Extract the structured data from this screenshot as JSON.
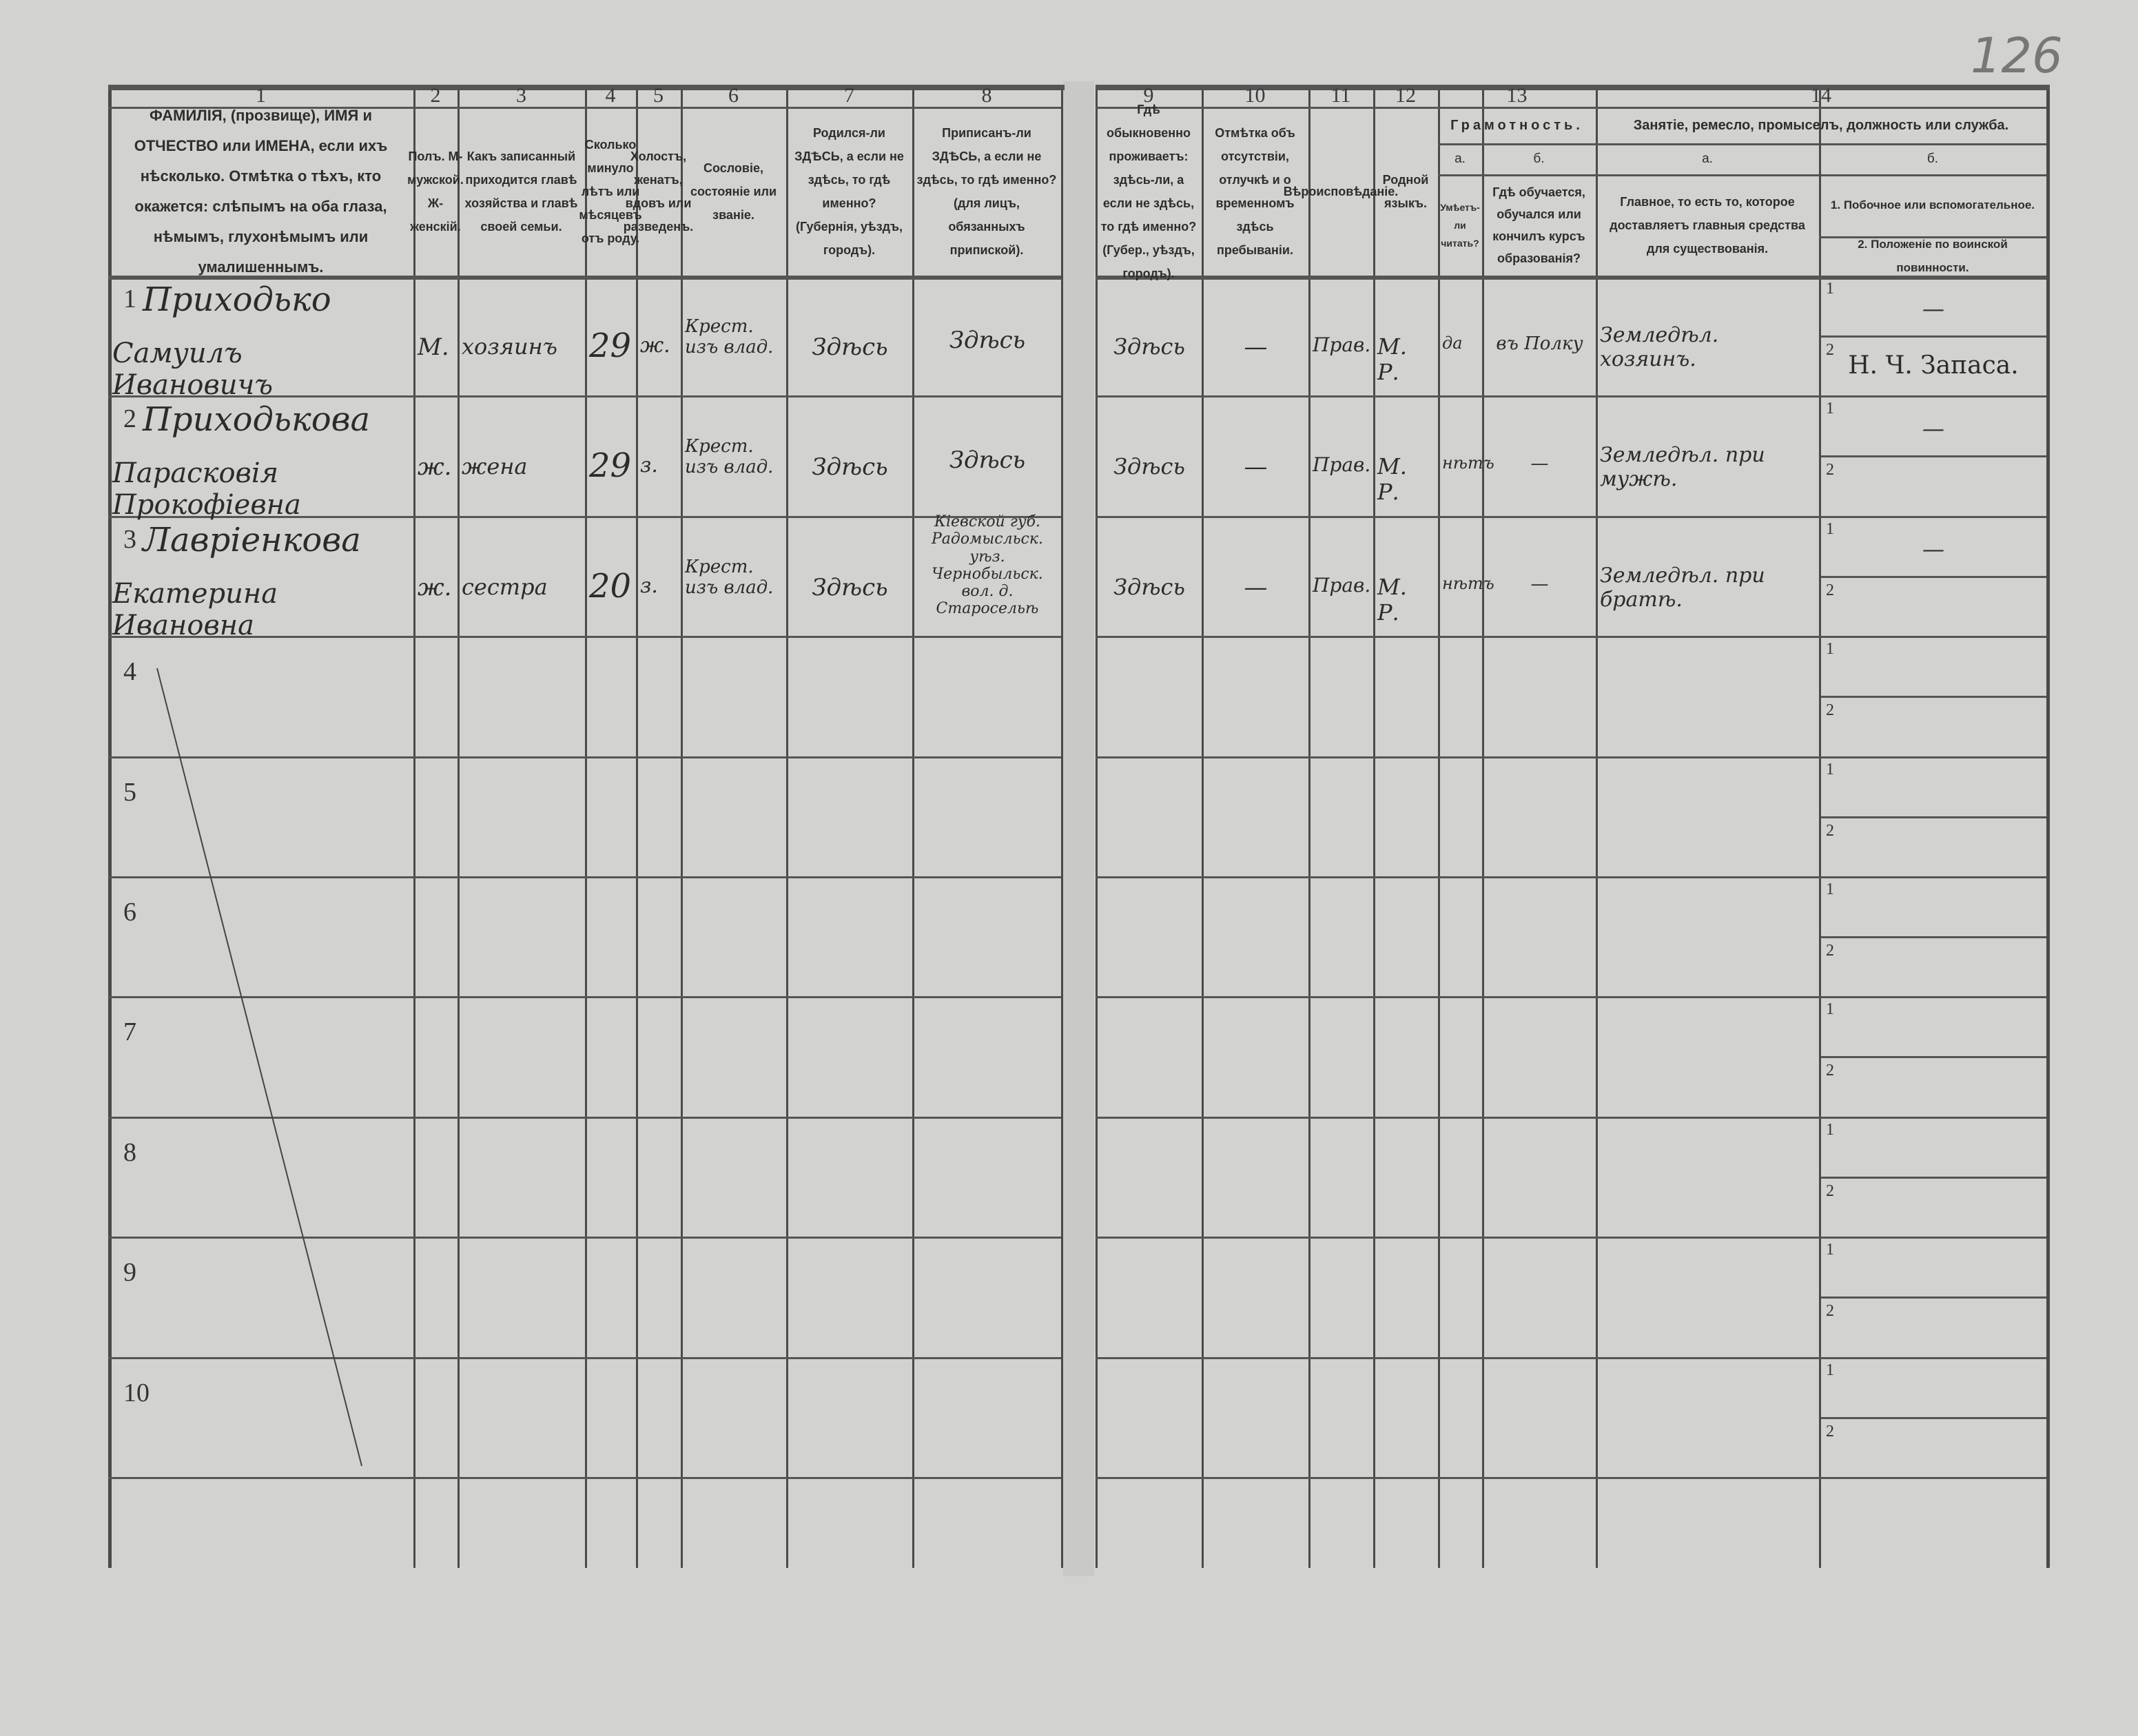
{
  "page_number": "126",
  "header": {
    "columns": [
      {
        "num": "1",
        "label": "ФАМИЛІЯ, (прозвище), ИМЯ и ОТЧЕСТВО или ИМЕНА, если ихъ нѣсколько. Отмѣтка о тѣхъ, кто окажется: слѣпымъ на оба глаза, нѣмымъ, глухонѣмымъ или умалишеннымъ."
      },
      {
        "num": "2",
        "label": "Полъ. М-мужской. Ж-женскій."
      },
      {
        "num": "3",
        "label": "Какъ записанный приходится главѣ хозяйства и главѣ своей семьи."
      },
      {
        "num": "4",
        "label": "Сколько минуло лѣтъ или мѣсяцевъ отъ роду."
      },
      {
        "num": "5",
        "label": "Холостъ, женатъ, вдовъ или разведенъ."
      },
      {
        "num": "6",
        "label": "Сословіе, состояніе или званіе."
      },
      {
        "num": "7",
        "label": "Родился-ли ЗДѢСЬ, а если не здѣсь, то гдѣ именно? (Губернія, уѣздъ, городъ)."
      },
      {
        "num": "8",
        "label": "Приписанъ-ли ЗДѢСЬ, а если не здѣсь, то гдѣ именно? (для лицъ, обязанныхъ припиской)."
      },
      {
        "num": "9",
        "label": "Гдѣ обыкновенно проживаетъ: здѣсь-ли, а если не здѣсь, то гдѣ именно? (Губер., уѣздъ, городъ)."
      },
      {
        "num": "10",
        "label": "Отмѣтка объ отсутствіи, отлучкѣ и о временномъ здѣсь пребываніи."
      },
      {
        "num": "11",
        "label": "Вѣроисповѣданіе."
      },
      {
        "num": "12",
        "label": "Родной языкъ."
      }
    ],
    "col13": {
      "num": "13",
      "group": "Грамотность.",
      "a_mark": "а.",
      "a_label": "Умѣетъ-ли читать?",
      "b_mark": "б.",
      "b_label": "Гдѣ обучается, обучался или кончилъ курсъ образованія?"
    },
    "col14": {
      "num": "14",
      "group": "Занятіе, ремесло, промыселъ, должность или служба.",
      "a_mark": "а.",
      "a_label": "Главное, то есть то, которое доставляетъ главныя средства для существованія.",
      "b_mark": "б.",
      "b_label_1": "1. Побочное или вспомогательное.",
      "b_label_2": "2. Положеніе по воинской повинности."
    }
  },
  "sub_labels": [
    "1",
    "2"
  ],
  "rows": [
    {
      "num": "1",
      "surname": "Приходько",
      "given": "Самуилъ Ивановичъ",
      "sex": "М.",
      "relation": "хозяинъ",
      "age": "29",
      "marital": "ж.",
      "estate": "Крест. изъ влад.",
      "birthplace": "Здѣсь",
      "registered": "Здѣсь",
      "residence": "Здѣсь",
      "absence": "—",
      "religion": "Прав.",
      "language": "М. Р.",
      "literate": "да",
      "education": "въ Полку",
      "occupation_main": "Земледѣл. хозяинъ.",
      "occupation_side": "—",
      "military": "Н. Ч. Запаса."
    },
    {
      "num": "2",
      "surname": "Приходькова",
      "given": "Парасковія Прокофіевна",
      "sex": "ж.",
      "relation": "жена",
      "age": "29",
      "marital": "з.",
      "estate": "Крест. изъ влад.",
      "birthplace": "Здѣсь",
      "registered": "Здѣсь",
      "residence": "Здѣсь",
      "absence": "—",
      "religion": "Прав.",
      "language": "М. Р.",
      "literate": "нѣтъ",
      "education": "—",
      "occupation_main": "Земледѣл. при мужѣ.",
      "occupation_side": "—",
      "military": ""
    },
    {
      "num": "3",
      "surname": "Лавріенкова",
      "given": "Екатерина Ивановна",
      "sex": "ж.",
      "relation": "сестра",
      "age": "20",
      "marital": "з.",
      "estate": "Крест. изъ влад.",
      "birthplace": "Здѣсь",
      "registered": "Кіевской губ. Радомысльск. уѣз. Чернобыльск. вол. д. Старосельѣ",
      "residence": "Здѣсь",
      "absence": "—",
      "religion": "Прав.",
      "language": "М. Р.",
      "literate": "нѣтъ",
      "education": "—",
      "occupation_main": "Земледѣл. при братѣ.",
      "occupation_side": "—",
      "military": ""
    },
    {
      "num": "4"
    },
    {
      "num": "5"
    },
    {
      "num": "6"
    },
    {
      "num": "7"
    },
    {
      "num": "8"
    },
    {
      "num": "9"
    },
    {
      "num": "10"
    }
  ]
}
